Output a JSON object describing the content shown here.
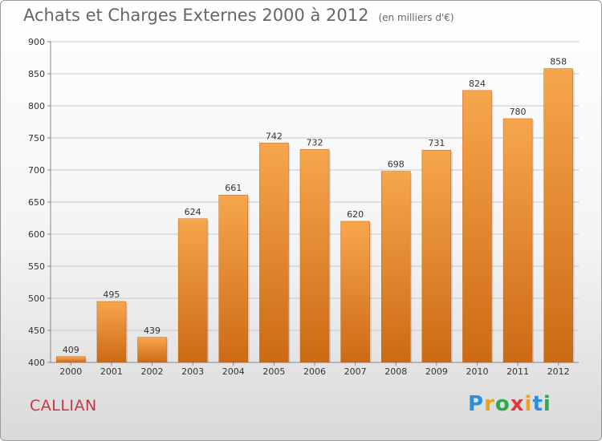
{
  "header": {
    "title": "Achats et Charges Externes 2000 à 2012",
    "unit": "(en milliers d'€)"
  },
  "commune": "CALLIAN",
  "logo": {
    "text": "Proxiti"
  },
  "colors": {
    "bar_light": "#f7a64e",
    "bar_dark": "#cc6a14",
    "grid": "#c8c8c8",
    "commune": "#cc3344"
  },
  "chart_data": {
    "type": "bar",
    "title": "Achats et Charges Externes 2000 à 2012",
    "subtitle": "(en milliers d'€)",
    "xlabel": "",
    "ylabel": "",
    "categories": [
      "2000",
      "2001",
      "2002",
      "2003",
      "2004",
      "2005",
      "2006",
      "2007",
      "2008",
      "2009",
      "2010",
      "2011",
      "2012"
    ],
    "values": [
      409,
      495,
      439,
      624,
      661,
      742,
      732,
      620,
      698,
      731,
      824,
      780,
      858
    ],
    "ylim": [
      400,
      900
    ],
    "yticks": [
      400,
      450,
      500,
      550,
      600,
      650,
      700,
      750,
      800,
      850,
      900
    ],
    "grid": true,
    "data_labels": true
  }
}
